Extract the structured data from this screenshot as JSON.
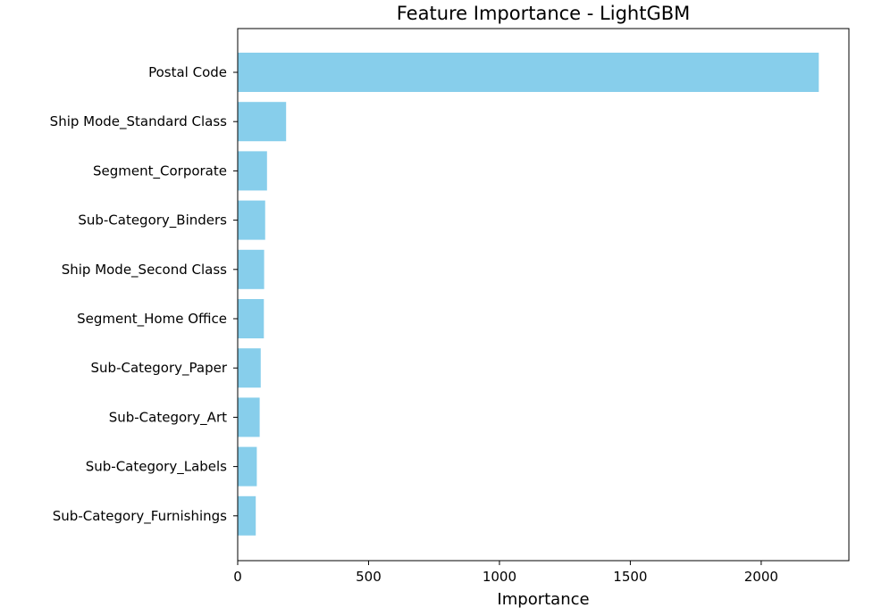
{
  "chart_data": {
    "type": "bar",
    "orientation": "horizontal",
    "title": "Feature Importance - LightGBM",
    "xlabel": "Importance",
    "ylabel": "",
    "categories": [
      "Postal Code",
      "Ship Mode_Standard Class",
      "Segment_Corporate",
      "Sub-Category_Binders",
      "Ship Mode_Second Class",
      "Segment_Home Office",
      "Sub-Category_Paper",
      "Sub-Category_Art",
      "Sub-Category_Labels",
      "Sub-Category_Furnishings"
    ],
    "values": [
      2220,
      185,
      112,
      105,
      101,
      100,
      88,
      84,
      73,
      69
    ],
    "xlim": [
      0,
      2335
    ],
    "xticks": [
      0,
      500,
      1000,
      1500,
      2000
    ],
    "grid": false,
    "legend": "none",
    "bar_color": "#87CEEB"
  }
}
